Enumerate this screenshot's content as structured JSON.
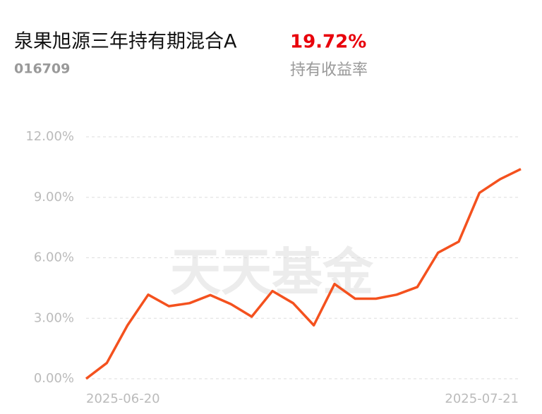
{
  "header": {
    "title": "泉果旭源三年持有期混合A",
    "code": "016709",
    "return_value": "19.72%",
    "return_label": "持有收益率"
  },
  "chart_data": {
    "type": "line",
    "watermark": "天天基金",
    "categories": [
      "2025-06-20",
      null,
      null,
      null,
      null,
      null,
      null,
      null,
      null,
      null,
      null,
      null,
      null,
      null,
      null,
      null,
      null,
      null,
      null,
      null,
      null,
      "2025-07-21"
    ],
    "series": [
      {
        "color": "#f4511e",
        "values": [
          0,
          0.78,
          2.65,
          4.17,
          3.6,
          3.75,
          4.15,
          3.7,
          3.08,
          4.35,
          3.75,
          2.65,
          4.7,
          3.97,
          3.97,
          4.17,
          4.55,
          6.25,
          6.8,
          9.22,
          9.9,
          10.4
        ]
      }
    ],
    "ylim": [
      0,
      12
    ],
    "yticks": [
      {
        "value": 0,
        "label": "0.00%"
      },
      {
        "value": 3,
        "label": "3.00%"
      },
      {
        "value": 6,
        "label": "6.00%"
      },
      {
        "value": 9,
        "label": "9.00%"
      },
      {
        "value": 12,
        "label": "12.00%"
      }
    ],
    "grid": true
  }
}
